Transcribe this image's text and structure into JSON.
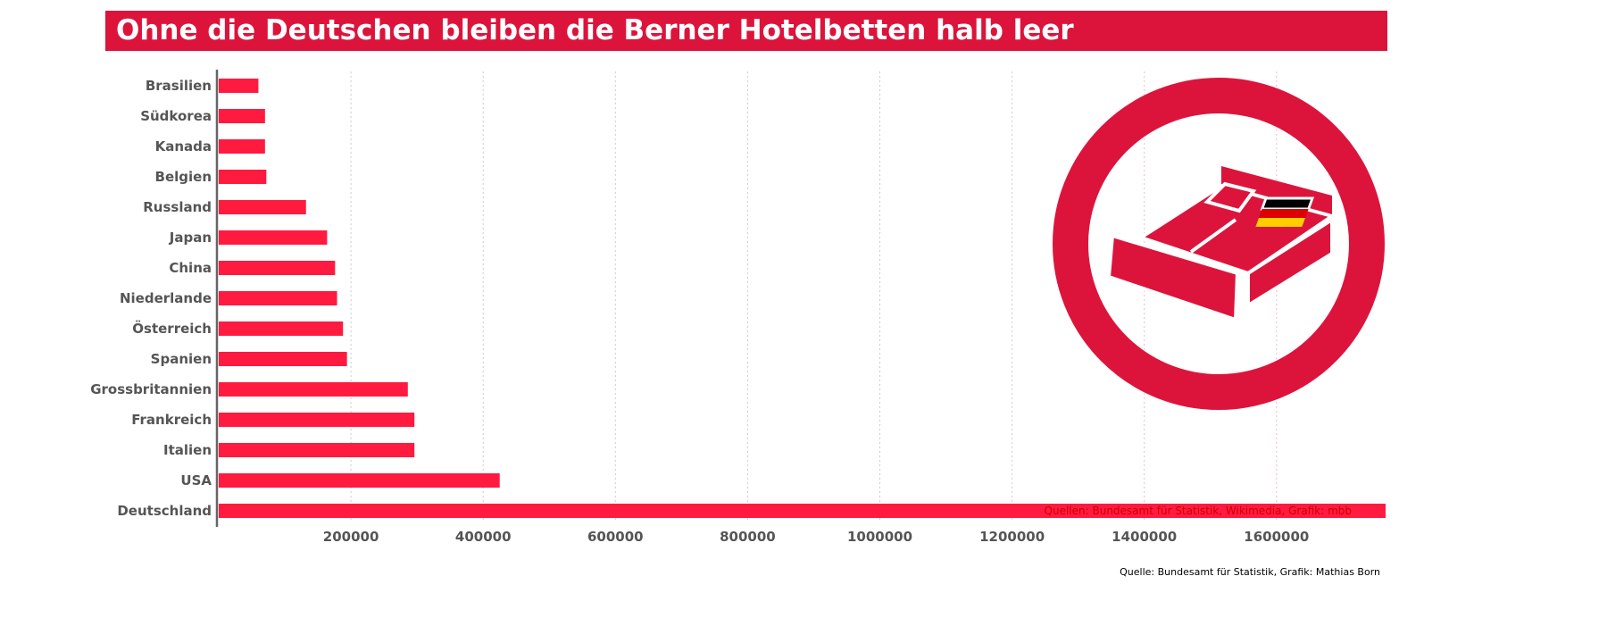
{
  "title": "Ohne die Deutschen bleiben die Berner Hotelbetten halb leer",
  "source": "Quelle: Bundesamt für Statistik, Grafik: Mathias Born",
  "inset_credit": "Quellen: Bundesamt für Statistik, Wikimedia, Grafik: mbb",
  "colors": {
    "bar": "#ff1a40",
    "banner": "#dc143c",
    "axis": "#666666",
    "grid": "#cccccc"
  },
  "chart_data": {
    "type": "bar",
    "orientation": "horizontal",
    "categories": [
      "Brasilien",
      "Südkorea",
      "Kanada",
      "Belgien",
      "Russland",
      "Japan",
      "China",
      "Niederlande",
      "Österreich",
      "Spanien",
      "Grossbritannien",
      "Frankreich",
      "Italien",
      "USA",
      "Deutschland"
    ],
    "values": [
      60000,
      70000,
      70000,
      72000,
      132000,
      164000,
      176000,
      179000,
      188000,
      194000,
      286000,
      296000,
      296000,
      425000,
      1765000
    ],
    "xticks": [
      "200000",
      "400000",
      "600000",
      "800000",
      "1000000",
      "1200000",
      "1400000",
      "1600000"
    ],
    "xlim": [
      0,
      1765000
    ],
    "grid": true
  }
}
